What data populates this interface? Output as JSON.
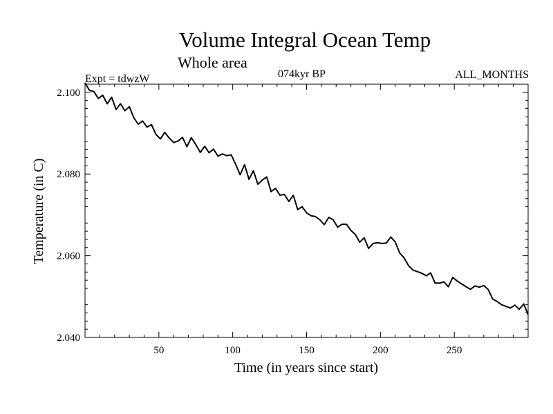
{
  "chart_data": {
    "type": "line",
    "title": "Volume Integral Ocean Temp",
    "subtitle": "Whole area",
    "annotations": {
      "left": "Expt = tdwzW",
      "center": "074kyr BP",
      "right": "ALL_MONTHS"
    },
    "xlabel": "Time (in years since start)",
    "ylabel": "Temperature (in C)",
    "xlim": [
      0,
      300
    ],
    "ylim": [
      2.04,
      2.102
    ],
    "x_ticks": [
      50,
      100,
      150,
      200,
      250
    ],
    "x_tick_labels": [
      "50",
      "100",
      "150",
      "200",
      "250"
    ],
    "y_ticks": [
      2.04,
      2.06,
      2.08,
      2.1
    ],
    "y_tick_labels": [
      "2.040",
      "2.060",
      "2.080",
      "2.100"
    ],
    "grid": false,
    "series": [
      {
        "color": "#000000",
        "x": [
          0,
          3,
          6,
          9,
          12,
          15,
          18,
          21,
          24,
          27,
          30,
          33,
          36,
          39,
          42,
          45,
          48,
          51,
          54,
          57,
          60,
          63,
          66,
          69,
          72,
          75,
          78,
          81,
          84,
          87,
          90,
          93,
          96,
          99,
          102,
          105,
          108,
          111,
          114,
          117,
          120,
          123,
          126,
          129,
          132,
          135,
          138,
          141,
          144,
          147,
          150,
          153,
          156,
          159,
          162,
          165,
          168,
          171,
          174,
          177,
          180,
          183,
          186,
          189,
          192,
          195,
          198,
          201,
          204,
          207,
          210,
          213,
          216,
          219,
          222,
          225,
          228,
          231,
          234,
          237,
          240,
          243,
          246,
          249,
          252,
          255,
          258,
          261,
          264,
          267,
          270,
          273,
          276,
          279,
          282,
          285,
          288,
          291,
          294,
          297,
          300
        ],
        "y": [
          2.1023,
          2.1005,
          2.1002,
          2.0985,
          2.0993,
          2.0972,
          2.0988,
          2.0958,
          2.0972,
          2.0955,
          2.0965,
          2.0938,
          2.0922,
          2.093,
          2.0915,
          2.0921,
          2.0897,
          2.0886,
          2.0902,
          2.0888,
          2.0877,
          2.0881,
          2.089,
          2.0867,
          2.0889,
          2.0872,
          2.0853,
          2.0868,
          2.0852,
          2.0861,
          2.0844,
          2.0849,
          2.0845,
          2.0847,
          2.0824,
          2.0798,
          2.0823,
          2.0787,
          2.0808,
          2.0775,
          2.0785,
          2.0793,
          2.0757,
          2.0765,
          2.0748,
          2.075,
          2.0733,
          2.0748,
          2.0713,
          2.072,
          2.0705,
          2.0698,
          2.0696,
          2.0688,
          2.0676,
          2.0694,
          2.0688,
          2.067,
          2.0677,
          2.0677,
          2.0662,
          2.0652,
          2.0633,
          2.0644,
          2.0618,
          2.063,
          2.0632,
          2.063,
          2.0631,
          2.0646,
          2.0634,
          2.0607,
          2.0595,
          2.0576,
          2.0565,
          2.0561,
          2.0557,
          2.0551,
          2.0558,
          2.0533,
          2.0533,
          2.0536,
          2.0524,
          2.0547,
          2.0538,
          2.0531,
          2.0524,
          2.0518,
          2.0526,
          2.0523,
          2.0527,
          2.0517,
          2.0494,
          2.0488,
          2.048,
          2.0476,
          2.0472,
          2.0479,
          2.0469,
          2.0482,
          2.0456
        ]
      }
    ]
  }
}
